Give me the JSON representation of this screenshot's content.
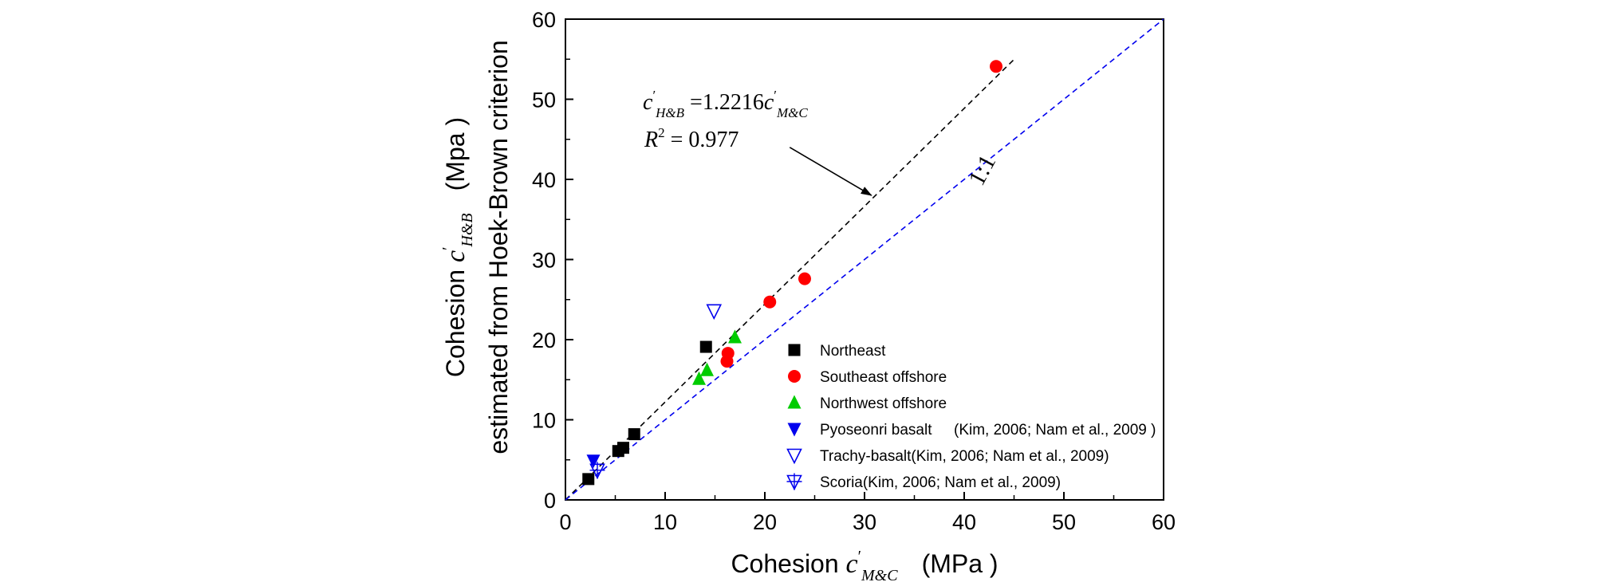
{
  "chart_data": {
    "type": "scatter",
    "xlim": [
      0,
      60
    ],
    "ylim": [
      0,
      60
    ],
    "x_ticks": [
      0,
      10,
      20,
      30,
      40,
      50,
      60
    ],
    "y_ticks": [
      0,
      10,
      20,
      30,
      40,
      50,
      60
    ],
    "xlabel": {
      "prefix": "Cohesion ",
      "var": "c",
      "prime": "′",
      "sub": "M&C",
      "unit": "(MPa )"
    },
    "ylabel": {
      "line1_prefix": "Cohesion ",
      "var": "c",
      "prime": "′",
      "sub": "H&B",
      "unit": "(Mpa )",
      "line2": "estimated from Hoek-Brown criterion"
    },
    "series": [
      {
        "name": "Northeast",
        "marker": "square",
        "color": "#000000",
        "points": [
          [
            2.3,
            2.6
          ],
          [
            5.3,
            6.1
          ],
          [
            5.8,
            6.5
          ],
          [
            6.9,
            8.2
          ],
          [
            14.1,
            19.1
          ]
        ]
      },
      {
        "name": "Southeast offshore",
        "marker": "circle",
        "color": "#ff0000",
        "points": [
          [
            16.2,
            17.3
          ],
          [
            16.3,
            18.3
          ],
          [
            20.5,
            24.7
          ],
          [
            24.0,
            27.6
          ],
          [
            43.2,
            54.1
          ]
        ]
      },
      {
        "name": "Northwest offshore",
        "marker": "triangle-up",
        "color": "#00cc00",
        "points": [
          [
            13.4,
            15.1
          ],
          [
            14.2,
            16.2
          ],
          [
            17.0,
            20.3
          ]
        ]
      },
      {
        "name": "Pyoseonri basalt",
        "name_ref": "(Kim, 2006; Nam et al., 2009 )",
        "marker": "triangle-down",
        "color": "#0000ee",
        "points": [
          [
            2.8,
            4.9
          ]
        ]
      },
      {
        "name": "Trachy-basalt(Kim, 2006; Nam et al., 2009)",
        "marker": "triangle-down-open",
        "color": "#0000ee",
        "points": [
          [
            14.9,
            23.6
          ]
        ]
      },
      {
        "name": "Scoria(Kim, 2006; Nam et al., 2009)",
        "marker": "triangle-down-open-cross",
        "color": "#0000ee",
        "points": [
          [
            3.2,
            3.7
          ]
        ]
      }
    ],
    "lines": [
      {
        "kind": "fit",
        "slope": 1.2216,
        "x_range": [
          0,
          45
        ],
        "color": "#000000",
        "style": "dashed"
      },
      {
        "kind": "identity",
        "slope": 1.0,
        "x_range": [
          0,
          60
        ],
        "color": "#0000ee",
        "style": "dashed",
        "label": "1:1"
      }
    ],
    "annotation": {
      "equation_lhs_var": "c",
      "equation_lhs_prime": "′",
      "equation_lhs_sub": "H&B",
      "equation_mid": " =1.2216",
      "equation_rhs_var": "c",
      "equation_rhs_prime": "′",
      "equation_rhs_sub": "M&C",
      "r2_var": "R",
      "r2_exp": "2",
      "r2_value": " = 0.977",
      "arrow_from": [
        22.5,
        44.0
      ],
      "arrow_to": [
        30.7,
        38.0
      ]
    },
    "legend_placement": "lower-right",
    "grid": false
  }
}
